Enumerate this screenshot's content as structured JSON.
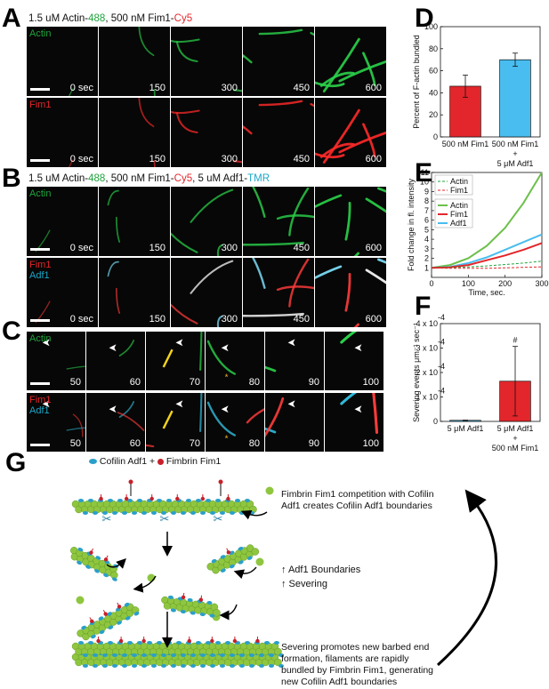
{
  "panels": {
    "A": "A",
    "B": "B",
    "C": "C",
    "D": "D",
    "E": "E",
    "F": "F",
    "G": "G"
  },
  "panelA": {
    "header": {
      "p1": "1.5 uM Actin-",
      "p2": "488",
      "p3": ", 500 nM Fim1-",
      "p4": "Cy5"
    },
    "rows": [
      {
        "channel": "Actin",
        "color": "#1ea33c",
        "times": [
          "0 sec",
          "150",
          "300",
          "450",
          "600"
        ]
      },
      {
        "channel": "Fim1",
        "color": "#e3262b",
        "times": [
          "0 sec",
          "150",
          "300",
          "450",
          "600"
        ]
      }
    ]
  },
  "panelB": {
    "header": {
      "p1": "1.5 uM Actin-",
      "p2": "488",
      "p3": ", 500 nM Fim1-",
      "p4": "Cy5",
      "p5": ", 5 uM Adf1-",
      "p6": "TMR"
    },
    "rows": [
      {
        "channel": "Actin",
        "times": [
          "0 sec",
          "150",
          "300",
          "450",
          "600"
        ]
      },
      {
        "channel1": "Fim1",
        "channel2": "Adf1",
        "times": [
          "0 sec",
          "150",
          "300",
          "450",
          "600"
        ]
      }
    ]
  },
  "panelC": {
    "rows": [
      {
        "channel": "Actin",
        "times": [
          "50",
          "60",
          "70",
          "80",
          "90",
          "100"
        ]
      },
      {
        "channel1": "Fim1",
        "channel2": "Adf1",
        "times": [
          "50",
          "60",
          "70",
          "80",
          "90",
          "100"
        ]
      }
    ]
  },
  "chart_data": [
    {
      "id": "D",
      "type": "bar",
      "ylabel": "Percent of F-actin bundled",
      "ylim": [
        0,
        100
      ],
      "yticks": [
        "0",
        "20",
        "40",
        "60",
        "80",
        "100"
      ],
      "categories": [
        "500 nM Fim1",
        "500 nM Fim1 + 5 μM Adf1"
      ],
      "category_lines": [
        [
          "500 nM Fim1"
        ],
        [
          "500 nM Fim1",
          "+",
          "5 μM Adf1"
        ]
      ],
      "values": [
        46,
        70
      ],
      "errors": [
        10,
        6
      ],
      "colors": [
        "#e3262b",
        "#49bdf0"
      ]
    },
    {
      "id": "E",
      "type": "line",
      "ylabel": "Fold change in fl. intensity",
      "xlabel": "Time, sec.",
      "xlim": [
        0,
        300
      ],
      "ylim": [
        0,
        11
      ],
      "xticks": [
        "0",
        "100",
        "200",
        "300"
      ],
      "yticks": [
        "1",
        "2",
        "3",
        "4",
        "5",
        "6",
        "7",
        "8",
        "9",
        "10",
        "11"
      ],
      "legend1": [
        {
          "name": "Actin",
          "color": "#1ea33c"
        },
        {
          "name": "Fim1",
          "color": "#e3262b"
        }
      ],
      "legend2": [
        {
          "name": "Actin",
          "color": "#6cc04a"
        },
        {
          "name": "Fim1",
          "color": "#e3262b"
        },
        {
          "name": "Adf1",
          "color": "#49bdf0"
        }
      ],
      "series": [
        {
          "name": "Actin",
          "style": "solid",
          "color": "#6cc04a",
          "x": [
            0,
            50,
            100,
            150,
            200,
            250,
            300
          ],
          "y": [
            1,
            1.3,
            2.0,
            3.3,
            5.2,
            7.8,
            11
          ]
        },
        {
          "name": "Adf1",
          "style": "solid",
          "color": "#49bdf0",
          "x": [
            0,
            50,
            100,
            150,
            200,
            250,
            300
          ],
          "y": [
            1,
            1.1,
            1.5,
            2.1,
            2.9,
            3.7,
            4.5
          ]
        },
        {
          "name": "Fim1",
          "style": "solid",
          "color": "#e3262b",
          "x": [
            0,
            50,
            100,
            150,
            200,
            250,
            300
          ],
          "y": [
            1,
            1.05,
            1.3,
            1.8,
            2.3,
            2.9,
            3.6
          ]
        },
        {
          "name": "Actin",
          "style": "dashed",
          "color": "#1ea33c",
          "x": [
            0,
            50,
            100,
            150,
            200,
            250,
            300
          ],
          "y": [
            1,
            1.0,
            1.1,
            1.2,
            1.35,
            1.5,
            1.7
          ]
        },
        {
          "name": "Fim1",
          "style": "dashed",
          "color": "#e3262b",
          "x": [
            0,
            50,
            100,
            150,
            200,
            250,
            300
          ],
          "y": [
            1,
            0.95,
            0.95,
            0.95,
            1.0,
            1.05,
            1.1
          ]
        }
      ]
    },
    {
      "id": "F",
      "type": "bar",
      "ylabel": "Severing events μm⁻¹ sec⁻¹",
      "ylim": [
        0,
        0.00045
      ],
      "yticks": [
        "0",
        "1 x 10",
        "2 x 10",
        "3 x 10",
        "4 x 10"
      ],
      "ytick_exp": "-4",
      "categories": [
        "5 μM Adf1",
        "5 μM Adf1 + 500 nM Fim1"
      ],
      "category_lines": [
        [
          "5 μM Adf1"
        ],
        [
          "5 μM Adf1",
          "+",
          "500 nM Fim1"
        ]
      ],
      "values": [
        5e-06,
        0.000185
      ],
      "errors": [
        1e-06,
        0.00016
      ],
      "colors": [
        "#49bdf0",
        "#e3262b"
      ],
      "annotation": "#"
    }
  ],
  "panelG": {
    "legend_p1": "Cofilin Adf1 + ",
    "legend_p2": " Fimbrin Fim1",
    "text1": [
      "Fimbrin Fim1 competition with Cofilin",
      "Adf1 creates Cofilin Adf1 boundaries"
    ],
    "text2": [
      "↑ Adf1 Boundaries",
      "↑ Severing"
    ],
    "text3": [
      "Severing promotes new barbed end",
      "formation, filaments are rapidly",
      "bundled by Fimbrin Fim1, generating",
      "new Cofilin Adf1 boundaries"
    ]
  },
  "colors": {
    "actin": "#8fc63f",
    "cofilin": "#2a9fc9",
    "fimbrin": "#c8202a"
  }
}
